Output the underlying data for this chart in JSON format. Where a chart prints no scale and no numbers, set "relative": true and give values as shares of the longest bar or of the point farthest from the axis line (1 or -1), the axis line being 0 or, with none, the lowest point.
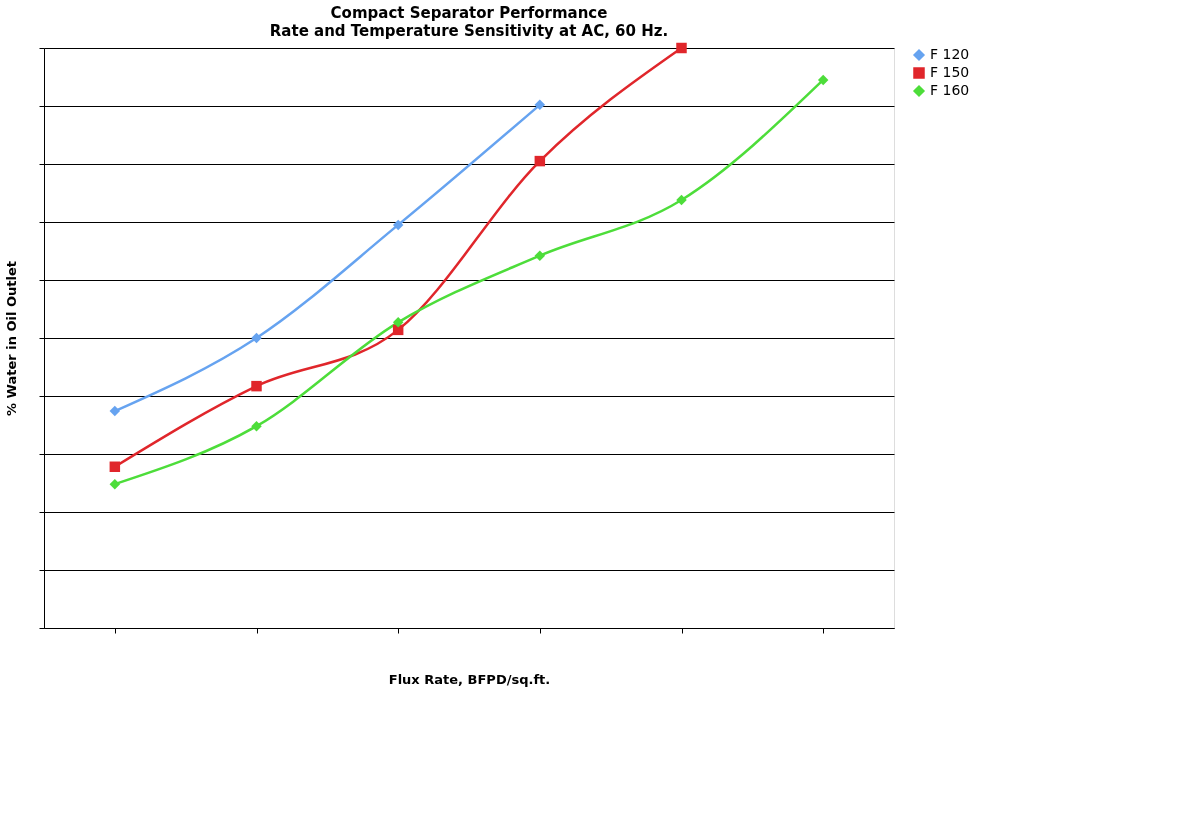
{
  "chart_data": {
    "type": "line",
    "title": "Compact Separator Performance",
    "subtitle": "Rate and Temperature Sensitivity at AC, 60 Hz.",
    "xlabel": "Flux Rate, BFPD/sq.ft.",
    "ylabel": "%  Water in Oil Outlet",
    "relative": true,
    "grid": "y",
    "legend": "right",
    "tick_labels": false,
    "categories": [
      null,
      null,
      null,
      null,
      null,
      null
    ],
    "series": [
      {
        "name": "F 120",
        "color": "#66a3f0",
        "marker": "diamond",
        "values": [
          0.374,
          0.5,
          0.695,
          0.902,
          null,
          null
        ]
      },
      {
        "name": "F 150",
        "color": "#e0262b",
        "marker": "square",
        "values": [
          0.278,
          0.417,
          0.514,
          0.805,
          1,
          null
        ]
      },
      {
        "name": "F 160",
        "color": "#4ddd3a",
        "marker": "diamond",
        "values": [
          0.248,
          0.348,
          0.527,
          0.642,
          0.738,
          0.945
        ]
      }
    ]
  }
}
